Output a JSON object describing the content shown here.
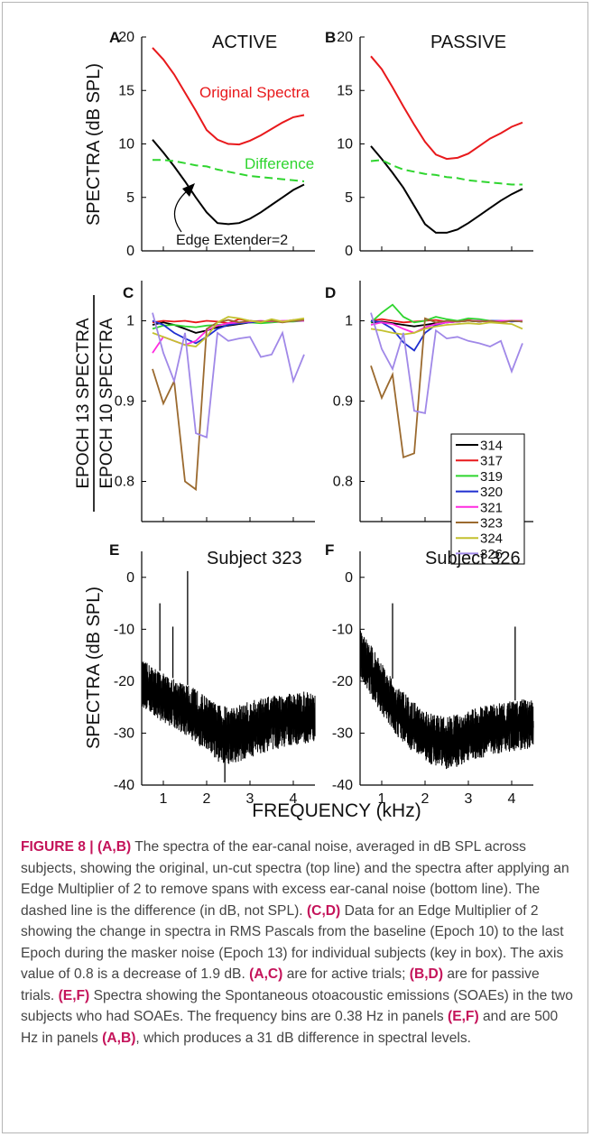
{
  "figure_label": "FIGURE 8 |",
  "caption_html": "<span class=\"lab\">FIGURE 8 | </span><b>(A,B)</b> The spectra of the ear-canal noise, averaged in dB SPL across subjects, showing the original, un-cut spectra (top line) and the spectra after applying an Edge Multiplier of 2 to remove spans with excess ear-canal noise (bottom line). The dashed line is the difference (in dB, not SPL). <b>(C,D)</b> Data for an Edge Multiplier of 2 showing the change in spectra in RMS Pascals from the baseline (Epoch 10) to the last Epoch during the masker noise (Epoch 13) for individual subjects (key in box). The axis value of 0.8 is a decrease of 1.9 dB. <b>(A,C)</b> are for active trials; <b>(B,D)</b> are for passive trials. <b>(E,F)</b> Spectra showing the Spontaneous otoacoustic emissions (SOAEs) in the two subjects who had SOAEs. The frequency bins are 0.38 Hz in panels <b>(E,F)</b> and are 500 Hz in panels <b>(A,B)</b>, which produces a 31 dB difference in spectral levels.",
  "ylabels": {
    "top": "SPECTRA  (dB SPL)",
    "middle_upper": "EPOCH 13  SPECTRA",
    "middle_lower": "EPOCH 10  SPECTRA",
    "bottom": "SPECTRA  (dB SPL)"
  },
  "xlabel": "FREQUENCY  (kHz)",
  "legend_entries": [
    "314",
    "317",
    "319",
    "320",
    "321",
    "323",
    "324",
    "326"
  ],
  "colors": {
    "314": "#000000",
    "317": "#e8191c",
    "319": "#2fd52f",
    "320": "#1f2fd0",
    "321": "#ff2ce0",
    "323": "#9b6a2f",
    "324": "#c3c12e",
    "326": "#a088e8",
    "original": "#e8191c",
    "difference": "#2fd52f",
    "edge": "#000000"
  },
  "chart_data": [
    {
      "panel": "A",
      "title": "ACTIVE",
      "type": "line",
      "ylim": [
        0,
        20
      ],
      "yticks": [
        0,
        5,
        10,
        15,
        20
      ],
      "xlim": [
        0.5,
        4.5
      ],
      "annotations": [
        "Original Spectra",
        "Difference",
        "Edge Extender=2"
      ],
      "series": [
        {
          "key": "original",
          "x": [
            0.75,
            1.0,
            1.25,
            1.5,
            1.75,
            2.0,
            2.25,
            2.5,
            2.75,
            3.0,
            3.25,
            3.5,
            3.75,
            4.0,
            4.25
          ],
          "values": [
            19.0,
            17.9,
            16.5,
            14.8,
            13.1,
            11.3,
            10.4,
            10.0,
            9.95,
            10.3,
            10.8,
            11.4,
            12.0,
            12.5,
            12.7
          ]
        },
        {
          "key": "edge",
          "x": [
            0.75,
            1.0,
            1.25,
            1.5,
            1.75,
            2.0,
            2.25,
            2.5,
            2.75,
            3.0,
            3.25,
            3.5,
            3.75,
            4.0,
            4.25
          ],
          "values": [
            10.4,
            9.2,
            7.9,
            6.5,
            5.0,
            3.6,
            2.6,
            2.5,
            2.6,
            3.0,
            3.6,
            4.3,
            5.0,
            5.7,
            6.2
          ]
        },
        {
          "key": "difference",
          "dashed": true,
          "x": [
            0.75,
            1.0,
            1.25,
            1.5,
            1.75,
            2.0,
            2.25,
            2.5,
            2.75,
            3.0,
            3.25,
            3.5,
            3.75,
            4.0,
            4.25
          ],
          "values": [
            8.5,
            8.5,
            8.4,
            8.2,
            8.0,
            7.9,
            7.6,
            7.4,
            7.2,
            7.0,
            6.9,
            6.8,
            6.7,
            6.6,
            6.5
          ]
        }
      ]
    },
    {
      "panel": "B",
      "title": "PASSIVE",
      "type": "line",
      "ylim": [
        0,
        20
      ],
      "yticks": [
        0,
        5,
        10,
        15,
        20
      ],
      "xlim": [
        0.5,
        4.5
      ],
      "series": [
        {
          "key": "original",
          "x": [
            0.75,
            1.0,
            1.25,
            1.5,
            1.75,
            2.0,
            2.25,
            2.5,
            2.75,
            3.0,
            3.25,
            3.5,
            3.75,
            4.0,
            4.25
          ],
          "values": [
            18.2,
            17.0,
            15.3,
            13.5,
            11.8,
            10.2,
            9.0,
            8.6,
            8.7,
            9.1,
            9.8,
            10.5,
            11.0,
            11.6,
            12.0
          ]
        },
        {
          "key": "edge",
          "x": [
            0.75,
            1.0,
            1.25,
            1.5,
            1.75,
            2.0,
            2.25,
            2.5,
            2.75,
            3.0,
            3.25,
            3.5,
            3.75,
            4.0,
            4.25
          ],
          "values": [
            9.8,
            8.6,
            7.3,
            5.9,
            4.2,
            2.5,
            1.7,
            1.7,
            2.0,
            2.6,
            3.3,
            4.0,
            4.7,
            5.3,
            5.8
          ]
        },
        {
          "key": "difference",
          "dashed": true,
          "x": [
            0.75,
            1.0,
            1.25,
            1.5,
            1.75,
            2.0,
            2.25,
            2.5,
            2.75,
            3.0,
            3.25,
            3.5,
            3.75,
            4.0,
            4.25
          ],
          "values": [
            8.4,
            8.5,
            8.0,
            7.6,
            7.4,
            7.2,
            7.1,
            6.9,
            6.8,
            6.6,
            6.5,
            6.4,
            6.3,
            6.2,
            6.2
          ]
        }
      ]
    },
    {
      "panel": "C",
      "type": "line",
      "ylim": [
        0.75,
        1.05
      ],
      "yticks": [
        0.8,
        0.9,
        1
      ],
      "xlim": [
        0.5,
        4.5
      ],
      "x": [
        0.75,
        1.0,
        1.25,
        1.5,
        1.75,
        2.0,
        2.25,
        2.5,
        2.75,
        3.0,
        3.25,
        3.5,
        3.75,
        4.0,
        4.25
      ],
      "series": [
        {
          "name": "314",
          "values": [
            0.995,
            0.998,
            0.995,
            0.99,
            0.985,
            0.988,
            0.992,
            0.994,
            0.996,
            0.998,
            0.999,
            1.0,
            0.999,
            1.0,
            1.0
          ]
        },
        {
          "name": "317",
          "values": [
            0.998,
            1.0,
            0.999,
            1.0,
            0.998,
            1.0,
            0.999,
            0.997,
            1.002,
            1.0,
            0.998,
            1.0,
            0.999,
            1.001,
            1.0
          ]
        },
        {
          "name": "319",
          "values": [
            0.99,
            0.994,
            0.995,
            0.993,
            0.992,
            0.994,
            0.995,
            0.996,
            0.997,
            0.998,
            0.997,
            0.998,
            0.999,
            0.999,
            1.0
          ]
        },
        {
          "name": "320",
          "values": [
            1.0,
            0.995,
            0.985,
            0.978,
            0.972,
            0.98,
            0.99,
            0.995,
            0.997,
            0.998,
            0.999,
            1.0,
            0.999,
            1.0,
            1.0
          ]
        },
        {
          "name": "321",
          "values": [
            0.96,
            0.98,
            0.975,
            0.97,
            0.975,
            0.988,
            0.994,
            0.997,
            0.998,
            0.999,
            1.0,
            0.999,
            1.0,
            1.0,
            1.0
          ]
        },
        {
          "name": "323",
          "values": [
            0.94,
            0.897,
            0.925,
            0.8,
            0.79,
            0.99,
            0.998,
            1.001,
            0.998,
            1.0,
            0.999,
            1.0,
            0.998,
            1.0,
            1.001
          ]
        },
        {
          "name": "324",
          "values": [
            0.985,
            0.98,
            0.975,
            0.97,
            0.968,
            0.98,
            0.998,
            1.005,
            1.003,
            1.0,
            0.998,
            1.002,
            0.999,
            1.001,
            1.003
          ]
        },
        {
          "name": "326",
          "values": [
            1.01,
            0.96,
            0.925,
            0.985,
            0.86,
            0.855,
            0.985,
            0.975,
            0.978,
            0.98,
            0.955,
            0.958,
            0.985,
            0.925,
            0.958
          ]
        }
      ]
    },
    {
      "panel": "D",
      "type": "line",
      "ylim": [
        0.75,
        1.05
      ],
      "yticks": [
        0.8,
        0.9,
        1
      ],
      "xlim": [
        0.5,
        4.5
      ],
      "x": [
        0.75,
        1.0,
        1.25,
        1.5,
        1.75,
        2.0,
        2.25,
        2.5,
        2.75,
        3.0,
        3.25,
        3.5,
        3.75,
        4.0,
        4.25
      ],
      "series": [
        {
          "name": "314",
          "values": [
            0.998,
            0.999,
            0.997,
            0.995,
            0.993,
            0.995,
            0.997,
            0.998,
            0.999,
            1.0,
            0.999,
            1.0,
            0.999,
            1.0,
            0.999
          ]
        },
        {
          "name": "317",
          "values": [
            1.0,
            1.002,
            1.0,
            0.998,
            0.999,
            1.0,
            1.001,
            0.999,
            1.0,
            1.001,
            0.999,
            1.0,
            0.998,
            1.0,
            1.0
          ]
        },
        {
          "name": "319",
          "values": [
            0.998,
            1.01,
            1.02,
            1.005,
            0.998,
            1.0,
            1.005,
            1.002,
            1.0,
            1.003,
            1.002,
            1.0,
            0.999,
            1.0,
            0.999
          ]
        },
        {
          "name": "320",
          "values": [
            1.0,
            0.998,
            0.99,
            0.973,
            0.963,
            0.985,
            0.995,
            0.998,
            0.999,
            1.0,
            0.999,
            1.0,
            1.0,
            0.999,
            1.0
          ]
        },
        {
          "name": "321",
          "values": [
            0.995,
            0.998,
            0.996,
            0.99,
            0.985,
            0.992,
            0.996,
            0.998,
            0.999,
            1.0,
            1.0,
            0.999,
            1.0,
            1.0,
            1.0
          ]
        },
        {
          "name": "323",
          "values": [
            0.944,
            0.904,
            0.933,
            0.83,
            0.835,
            1.003,
            0.998,
            1.0,
            0.999,
            1.0,
            0.999,
            1.0,
            0.998,
            1.0,
            0.999
          ]
        },
        {
          "name": "324",
          "values": [
            0.99,
            0.988,
            0.985,
            0.983,
            0.985,
            0.99,
            0.993,
            0.995,
            0.996,
            0.997,
            0.996,
            0.998,
            0.997,
            0.996,
            0.99
          ]
        },
        {
          "name": "326",
          "values": [
            1.01,
            0.965,
            0.94,
            0.985,
            0.888,
            0.885,
            0.988,
            0.978,
            0.98,
            0.975,
            0.972,
            0.968,
            0.975,
            0.937,
            0.972
          ]
        }
      ]
    },
    {
      "panel": "E",
      "title": "Subject 323",
      "type": "line",
      "ylim": [
        -40,
        5
      ],
      "yticks": [
        -40,
        -30,
        -20,
        -10,
        0
      ],
      "xlim": [
        0.5,
        4.5
      ],
      "xticks": [
        1,
        2,
        3,
        4
      ],
      "envelope": {
        "x": [
          0.5,
          0.75,
          1.0,
          1.25,
          1.5,
          1.75,
          2.0,
          2.25,
          2.5,
          2.75,
          3.0,
          3.25,
          3.5,
          3.75,
          4.0,
          4.25,
          4.5
        ],
        "upper": [
          -16,
          -17,
          -18.5,
          -19.5,
          -20.5,
          -21.5,
          -23,
          -24.5,
          -25,
          -24.5,
          -23.8,
          -23.2,
          -22.8,
          -22.5,
          -22.2,
          -22,
          -22
        ],
        "lower": [
          -25,
          -26.5,
          -28,
          -29,
          -30.5,
          -32,
          -34,
          -35.5,
          -36,
          -35.5,
          -34.8,
          -34,
          -33.3,
          -32.8,
          -32.4,
          -32,
          -31.8
        ]
      },
      "peaks": [
        {
          "x": 0.92,
          "y": -5
        },
        {
          "x": 1.22,
          "y": -9.5
        },
        {
          "x": 1.56,
          "y": 1.2
        },
        {
          "x": 2.42,
          "y": -39.5
        }
      ]
    },
    {
      "panel": "F",
      "title": "Subject 326",
      "type": "line",
      "ylim": [
        -40,
        5
      ],
      "yticks": [
        -40,
        -30,
        -20,
        -10,
        0
      ],
      "xlim": [
        0.5,
        4.5
      ],
      "xticks": [
        1,
        2,
        3,
        4
      ],
      "envelope": {
        "x": [
          0.5,
          0.75,
          1.0,
          1.25,
          1.5,
          1.75,
          2.0,
          2.25,
          2.5,
          2.75,
          3.0,
          3.25,
          3.5,
          3.75,
          4.0,
          4.25,
          4.5
        ],
        "upper": [
          -10,
          -13,
          -16.5,
          -19.5,
          -22,
          -24,
          -25.5,
          -26.5,
          -26.8,
          -26.3,
          -25.5,
          -25,
          -24.5,
          -24.2,
          -23.8,
          -23.5,
          -23.5
        ],
        "lower": [
          -19,
          -23,
          -26.5,
          -29.5,
          -32,
          -34,
          -35.5,
          -36.5,
          -37,
          -36.5,
          -35.5,
          -35,
          -34.3,
          -33.8,
          -33.5,
          -33.2,
          -33
        ]
      },
      "peaks": [
        {
          "x": 1.25,
          "y": -5
        },
        {
          "x": 4.08,
          "y": -9.5
        }
      ]
    }
  ]
}
